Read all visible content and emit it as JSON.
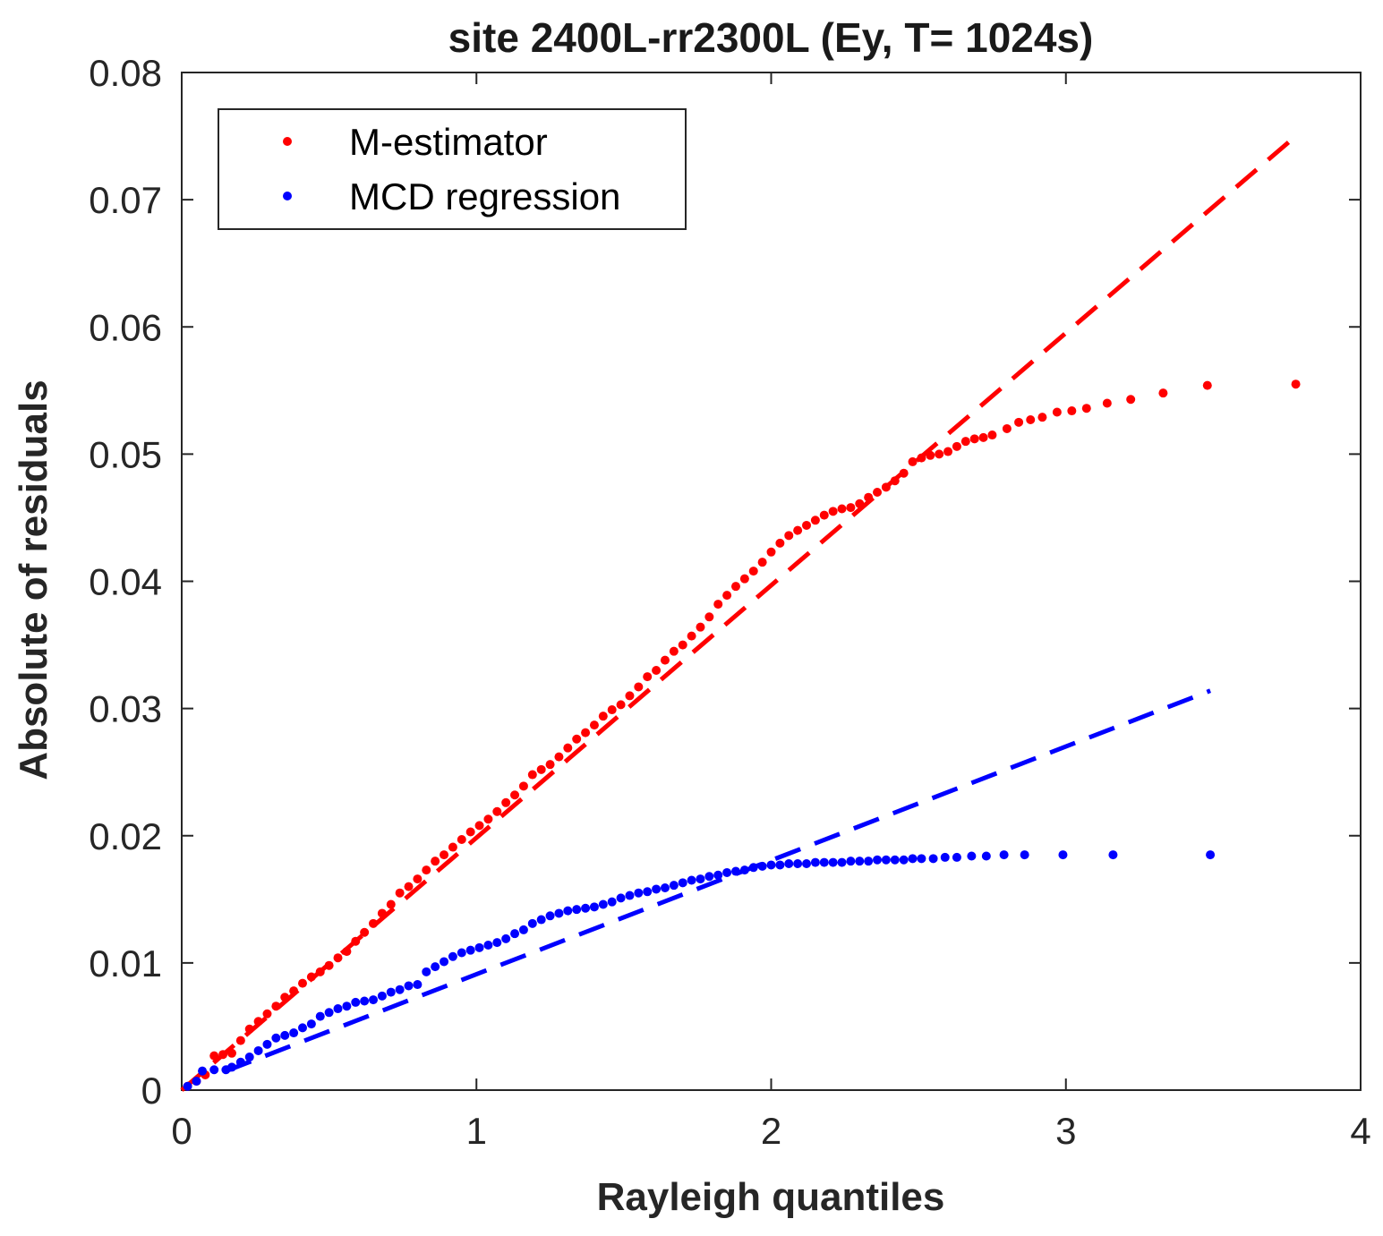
{
  "chart_data": {
    "type": "scatter",
    "title": "site 2400L-rr2300L (Ey, T= 1024s)",
    "xlabel": "Rayleigh quantiles",
    "ylabel": "Absolute of residuals",
    "xlim": [
      0,
      4
    ],
    "ylim": [
      0,
      0.08
    ],
    "xticks": [
      "0",
      "1",
      "2",
      "3",
      "4"
    ],
    "yticks": [
      "0",
      "0.01",
      "0.02",
      "0.03",
      "0.04",
      "0.05",
      "0.06",
      "0.07",
      "0.08"
    ],
    "legend": {
      "position": "top-left",
      "entries": [
        "M-estimator",
        "MCD regression"
      ]
    },
    "grid": false,
    "series": [
      {
        "name": "M-estimator",
        "color": "#ff0000",
        "marker": "dot",
        "points": [
          [
            0.02,
            0.0003
          ],
          [
            0.05,
            0.0007
          ],
          [
            0.08,
            0.0012
          ],
          [
            0.11,
            0.0027
          ],
          [
            0.14,
            0.0028
          ],
          [
            0.17,
            0.0029
          ],
          [
            0.2,
            0.0039
          ],
          [
            0.23,
            0.0048
          ],
          [
            0.26,
            0.0054
          ],
          [
            0.29,
            0.006
          ],
          [
            0.32,
            0.0066
          ],
          [
            0.35,
            0.0073
          ],
          [
            0.38,
            0.0078
          ],
          [
            0.41,
            0.0084
          ],
          [
            0.44,
            0.0089
          ],
          [
            0.47,
            0.0093
          ],
          [
            0.5,
            0.0098
          ],
          [
            0.53,
            0.0104
          ],
          [
            0.56,
            0.0109
          ],
          [
            0.59,
            0.0117
          ],
          [
            0.62,
            0.0124
          ],
          [
            0.65,
            0.0131
          ],
          [
            0.68,
            0.0139
          ],
          [
            0.71,
            0.0146
          ],
          [
            0.74,
            0.0155
          ],
          [
            0.77,
            0.016
          ],
          [
            0.8,
            0.0166
          ],
          [
            0.83,
            0.0173
          ],
          [
            0.86,
            0.018
          ],
          [
            0.89,
            0.0185
          ],
          [
            0.92,
            0.0191
          ],
          [
            0.95,
            0.0197
          ],
          [
            0.98,
            0.0203
          ],
          [
            1.01,
            0.0208
          ],
          [
            1.04,
            0.0213
          ],
          [
            1.07,
            0.0219
          ],
          [
            1.1,
            0.0226
          ],
          [
            1.13,
            0.0232
          ],
          [
            1.16,
            0.0239
          ],
          [
            1.19,
            0.0248
          ],
          [
            1.22,
            0.0252
          ],
          [
            1.25,
            0.0256
          ],
          [
            1.28,
            0.0262
          ],
          [
            1.31,
            0.0269
          ],
          [
            1.34,
            0.0276
          ],
          [
            1.37,
            0.0281
          ],
          [
            1.4,
            0.0287
          ],
          [
            1.43,
            0.0294
          ],
          [
            1.46,
            0.0299
          ],
          [
            1.49,
            0.0303
          ],
          [
            1.52,
            0.031
          ],
          [
            1.55,
            0.0317
          ],
          [
            1.58,
            0.0325
          ],
          [
            1.61,
            0.033
          ],
          [
            1.64,
            0.0338
          ],
          [
            1.67,
            0.0345
          ],
          [
            1.7,
            0.035
          ],
          [
            1.73,
            0.0357
          ],
          [
            1.76,
            0.0364
          ],
          [
            1.79,
            0.0372
          ],
          [
            1.82,
            0.0382
          ],
          [
            1.85,
            0.0389
          ],
          [
            1.88,
            0.0396
          ],
          [
            1.91,
            0.0402
          ],
          [
            1.94,
            0.0408
          ],
          [
            1.97,
            0.0415
          ],
          [
            2.0,
            0.0423
          ],
          [
            2.03,
            0.043
          ],
          [
            2.06,
            0.0436
          ],
          [
            2.09,
            0.044
          ],
          [
            2.12,
            0.0444
          ],
          [
            2.15,
            0.0448
          ],
          [
            2.18,
            0.0452
          ],
          [
            2.21,
            0.0455
          ],
          [
            2.24,
            0.0457
          ],
          [
            2.27,
            0.0458
          ],
          [
            2.3,
            0.0461
          ],
          [
            2.33,
            0.0466
          ],
          [
            2.36,
            0.047
          ],
          [
            2.39,
            0.0474
          ],
          [
            2.42,
            0.0479
          ],
          [
            2.45,
            0.0485
          ],
          [
            2.48,
            0.0494
          ],
          [
            2.51,
            0.0497
          ],
          [
            2.54,
            0.0499
          ],
          [
            2.57,
            0.05
          ],
          [
            2.6,
            0.0502
          ],
          [
            2.63,
            0.0506
          ],
          [
            2.66,
            0.051
          ],
          [
            2.69,
            0.0512
          ],
          [
            2.72,
            0.0513
          ],
          [
            2.75,
            0.0515
          ],
          [
            2.8,
            0.052
          ],
          [
            2.84,
            0.0525
          ],
          [
            2.88,
            0.0527
          ],
          [
            2.92,
            0.0529
          ],
          [
            2.97,
            0.0533
          ],
          [
            3.02,
            0.0534
          ],
          [
            3.07,
            0.0536
          ],
          [
            3.14,
            0.054
          ],
          [
            3.22,
            0.0543
          ],
          [
            3.33,
            0.0548
          ],
          [
            3.48,
            0.0554
          ],
          [
            3.78,
            0.0555
          ]
        ]
      },
      {
        "name": "MCD regression",
        "color": "#0000ff",
        "marker": "dot",
        "points": [
          [
            0.02,
            0.0003
          ],
          [
            0.05,
            0.0007
          ],
          [
            0.07,
            0.0015
          ],
          [
            0.11,
            0.0016
          ],
          [
            0.15,
            0.0016
          ],
          [
            0.17,
            0.0018
          ],
          [
            0.2,
            0.0022
          ],
          [
            0.23,
            0.0026
          ],
          [
            0.26,
            0.0031
          ],
          [
            0.29,
            0.0036
          ],
          [
            0.32,
            0.0041
          ],
          [
            0.35,
            0.0043
          ],
          [
            0.38,
            0.0045
          ],
          [
            0.41,
            0.0049
          ],
          [
            0.44,
            0.0052
          ],
          [
            0.47,
            0.0058
          ],
          [
            0.5,
            0.0061
          ],
          [
            0.53,
            0.0064
          ],
          [
            0.56,
            0.0066
          ],
          [
            0.59,
            0.0069
          ],
          [
            0.62,
            0.007
          ],
          [
            0.65,
            0.0071
          ],
          [
            0.68,
            0.0074
          ],
          [
            0.71,
            0.0077
          ],
          [
            0.74,
            0.0079
          ],
          [
            0.77,
            0.0082
          ],
          [
            0.8,
            0.0083
          ],
          [
            0.83,
            0.0093
          ],
          [
            0.86,
            0.0097
          ],
          [
            0.89,
            0.0101
          ],
          [
            0.92,
            0.0105
          ],
          [
            0.95,
            0.0108
          ],
          [
            0.98,
            0.011
          ],
          [
            1.01,
            0.0112
          ],
          [
            1.04,
            0.0114
          ],
          [
            1.07,
            0.0116
          ],
          [
            1.1,
            0.0119
          ],
          [
            1.13,
            0.0123
          ],
          [
            1.16,
            0.0126
          ],
          [
            1.19,
            0.0131
          ],
          [
            1.22,
            0.0134
          ],
          [
            1.25,
            0.0137
          ],
          [
            1.28,
            0.0139
          ],
          [
            1.31,
            0.0141
          ],
          [
            1.34,
            0.0142
          ],
          [
            1.37,
            0.0143
          ],
          [
            1.4,
            0.0144
          ],
          [
            1.43,
            0.0146
          ],
          [
            1.46,
            0.0148
          ],
          [
            1.49,
            0.0151
          ],
          [
            1.52,
            0.0153
          ],
          [
            1.55,
            0.0155
          ],
          [
            1.58,
            0.0156
          ],
          [
            1.61,
            0.0158
          ],
          [
            1.64,
            0.0159
          ],
          [
            1.67,
            0.0161
          ],
          [
            1.7,
            0.0163
          ],
          [
            1.73,
            0.0165
          ],
          [
            1.76,
            0.0166
          ],
          [
            1.79,
            0.0168
          ],
          [
            1.82,
            0.0169
          ],
          [
            1.85,
            0.0171
          ],
          [
            1.88,
            0.0172
          ],
          [
            1.91,
            0.0173
          ],
          [
            1.94,
            0.0175
          ],
          [
            1.97,
            0.0176
          ],
          [
            2.0,
            0.0177
          ],
          [
            2.03,
            0.0177
          ],
          [
            2.06,
            0.0178
          ],
          [
            2.09,
            0.0178
          ],
          [
            2.12,
            0.0178
          ],
          [
            2.15,
            0.0179
          ],
          [
            2.18,
            0.0179
          ],
          [
            2.21,
            0.0179
          ],
          [
            2.24,
            0.0179
          ],
          [
            2.27,
            0.018
          ],
          [
            2.3,
            0.018
          ],
          [
            2.33,
            0.018
          ],
          [
            2.36,
            0.0181
          ],
          [
            2.39,
            0.0181
          ],
          [
            2.42,
            0.0181
          ],
          [
            2.45,
            0.0181
          ],
          [
            2.48,
            0.0182
          ],
          [
            2.51,
            0.0182
          ],
          [
            2.55,
            0.0182
          ],
          [
            2.59,
            0.0183
          ],
          [
            2.63,
            0.0183
          ],
          [
            2.68,
            0.0184
          ],
          [
            2.73,
            0.0184
          ],
          [
            2.79,
            0.0185
          ],
          [
            2.86,
            0.0185
          ],
          [
            2.99,
            0.0185
          ],
          [
            3.16,
            0.0185
          ],
          [
            3.49,
            0.0185
          ]
        ]
      }
    ],
    "fit_lines": [
      {
        "series": "M-estimator",
        "color": "#ff0000",
        "style": "dashed",
        "x": [
          0,
          3.78
        ],
        "y": [
          0,
          0.075
        ]
      },
      {
        "series": "MCD regression",
        "color": "#0000ff",
        "style": "dashed",
        "x": [
          0.15,
          3.49
        ],
        "y": [
          0.0015,
          0.0314
        ]
      }
    ]
  }
}
